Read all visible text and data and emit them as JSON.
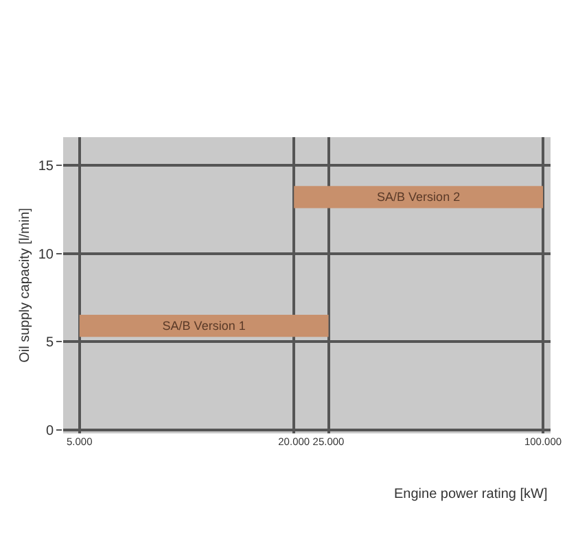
{
  "chart_data": {
    "type": "bar",
    "orientation": "horizontal",
    "log": "x",
    "xlabel": "Engine power rating [kW]",
    "ylabel": "Oil supply capacity [l/min]",
    "series": [
      {
        "name": "SA/B Version 1",
        "color": "#c8906c",
        "x": [
          5.9
        ],
        "values": [
          20000
        ],
        "base": [
          5000
        ]
      },
      {
        "name": "SA/B Version 2",
        "color": "#c8906c",
        "x": [
          13.2
        ],
        "values": [
          80000
        ],
        "base": [
          20000
        ]
      }
    ],
    "xlim": [
      4500,
      105000
    ],
    "xticks": [
      {
        "value": 5000,
        "label": "5.000"
      },
      {
        "value": 20000,
        "label": "20.000"
      },
      {
        "value": 25000,
        "label": "25.000"
      },
      {
        "value": 100000,
        "label": "100.000"
      }
    ],
    "ylim": [
      -0.2,
      16.6
    ],
    "yticks": [
      0,
      5,
      10,
      15
    ],
    "grid": true
  }
}
